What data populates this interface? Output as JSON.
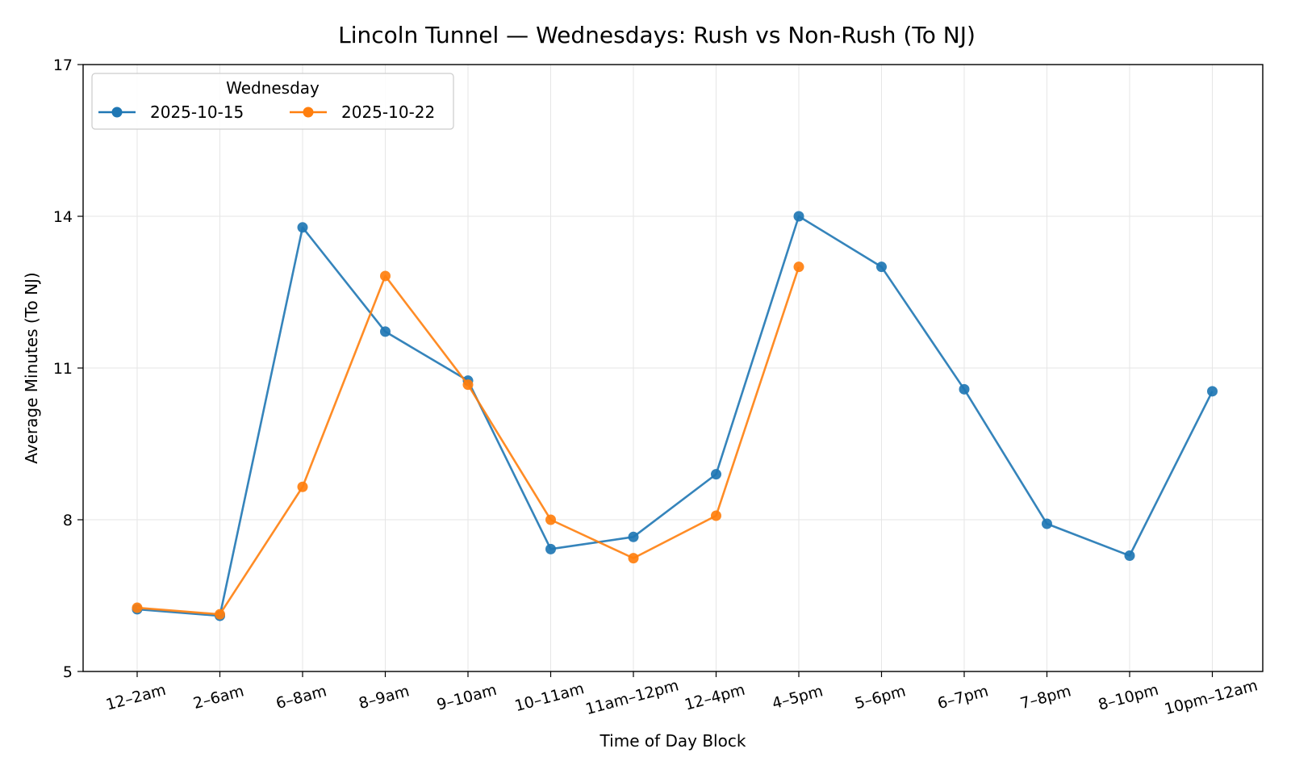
{
  "chart_data": {
    "type": "line",
    "title": "Lincoln Tunnel — Wednesdays: Rush vs Non-Rush (To NJ)",
    "xlabel": "Time of Day Block",
    "ylabel": "Average Minutes (To NJ)",
    "categories": [
      "12–2am",
      "2–6am",
      "6–8am",
      "8–9am",
      "9–10am",
      "10–11am",
      "11am–12pm",
      "12–4pm",
      "4–5pm",
      "5–6pm",
      "6–7pm",
      "7–8pm",
      "8–10pm",
      "10pm–12am"
    ],
    "ylim": [
      5,
      17
    ],
    "yticks": [
      5,
      8,
      11,
      14,
      17
    ],
    "grid": true,
    "legend": {
      "title": "Wednesday",
      "placement": "top-left"
    },
    "series": [
      {
        "name": "2025-10-15",
        "color": "#1f77b4",
        "values": [
          6.23,
          6.1,
          13.78,
          11.72,
          10.75,
          7.42,
          7.66,
          8.9,
          14.0,
          13.0,
          10.58,
          7.92,
          7.29,
          10.54
        ]
      },
      {
        "name": "2025-10-22",
        "color": "#ff7f0e",
        "values": [
          6.26,
          6.13,
          8.65,
          12.82,
          10.67,
          8.0,
          7.24,
          8.08,
          13.0,
          null,
          null,
          null,
          null,
          null
        ]
      }
    ]
  }
}
